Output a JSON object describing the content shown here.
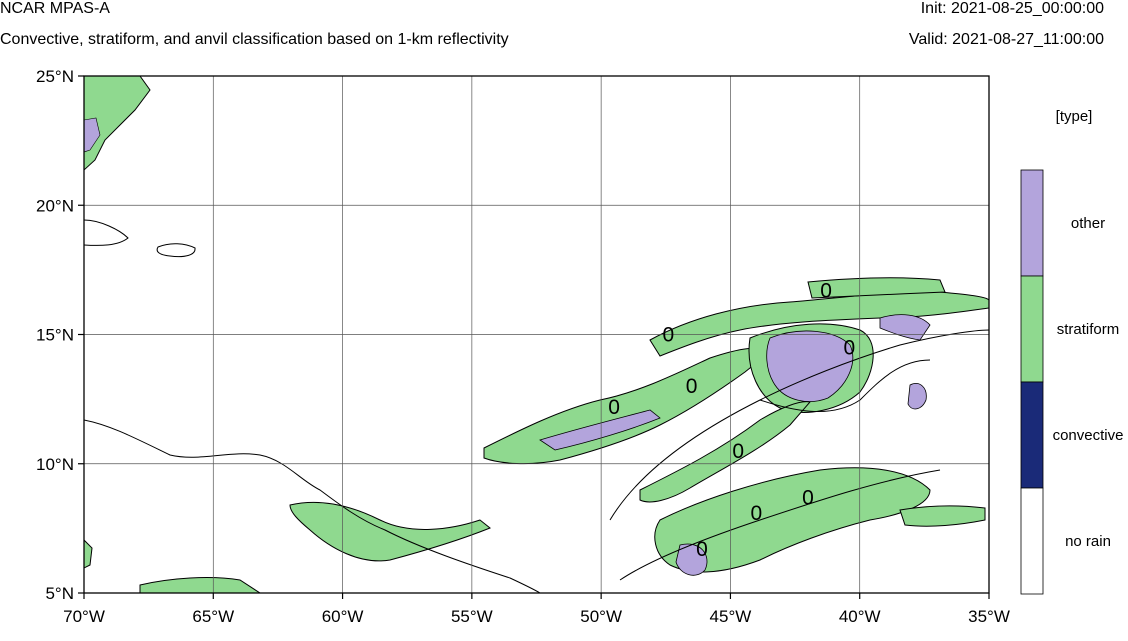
{
  "header": {
    "title": "NCAR MPAS-A",
    "subtitle": "Convective, stratiform, and anvil classification based on 1-km reflectivity",
    "init": "Init: 2021-08-25_00:00:00",
    "valid": "Valid: 2021-08-27_11:00:00"
  },
  "map": {
    "lon_range": [
      -70,
      -35
    ],
    "lat_range": [
      5,
      25
    ],
    "lon_ticks": [
      {
        "value": -70,
        "label": "70°W"
      },
      {
        "value": -65,
        "label": "65°W"
      },
      {
        "value": -60,
        "label": "60°W"
      },
      {
        "value": -55,
        "label": "55°W"
      },
      {
        "value": -50,
        "label": "50°W"
      },
      {
        "value": -45,
        "label": "45°W"
      },
      {
        "value": -40,
        "label": "40°W"
      },
      {
        "value": -35,
        "label": "35°W"
      }
    ],
    "lat_ticks": [
      {
        "value": 25,
        "label": "25°N"
      },
      {
        "value": 20,
        "label": "20°N"
      },
      {
        "value": 15,
        "label": "15°N"
      },
      {
        "value": 10,
        "label": "10°N"
      },
      {
        "value": 5,
        "label": "5°N"
      }
    ],
    "contour_labels": [
      {
        "lon": -41.3,
        "lat": 16.7,
        "text": "0"
      },
      {
        "lon": -47.4,
        "lat": 15.0,
        "text": "0"
      },
      {
        "lon": -40.4,
        "lat": 14.5,
        "text": "0"
      },
      {
        "lon": -46.5,
        "lat": 13.0,
        "text": "0"
      },
      {
        "lon": -49.5,
        "lat": 12.2,
        "text": "0"
      },
      {
        "lon": -44.7,
        "lat": 10.5,
        "text": "0"
      },
      {
        "lon": -42.0,
        "lat": 8.7,
        "text": "0"
      },
      {
        "lon": -44.0,
        "lat": 8.1,
        "text": "0"
      },
      {
        "lon": -46.1,
        "lat": 6.7,
        "text": "0"
      }
    ]
  },
  "legend": {
    "title": "[type]",
    "items": [
      {
        "label": "other",
        "color": "#b3a4dc"
      },
      {
        "label": "stratiform",
        "color": "#8fd98f"
      },
      {
        "label": "convective",
        "color": "#1a2a78"
      },
      {
        "label": "no rain",
        "color": "#ffffff"
      }
    ]
  },
  "colors": {
    "stratiform": "#8fd98f",
    "other": "#b3a4dc",
    "convective": "#1a2a78"
  }
}
